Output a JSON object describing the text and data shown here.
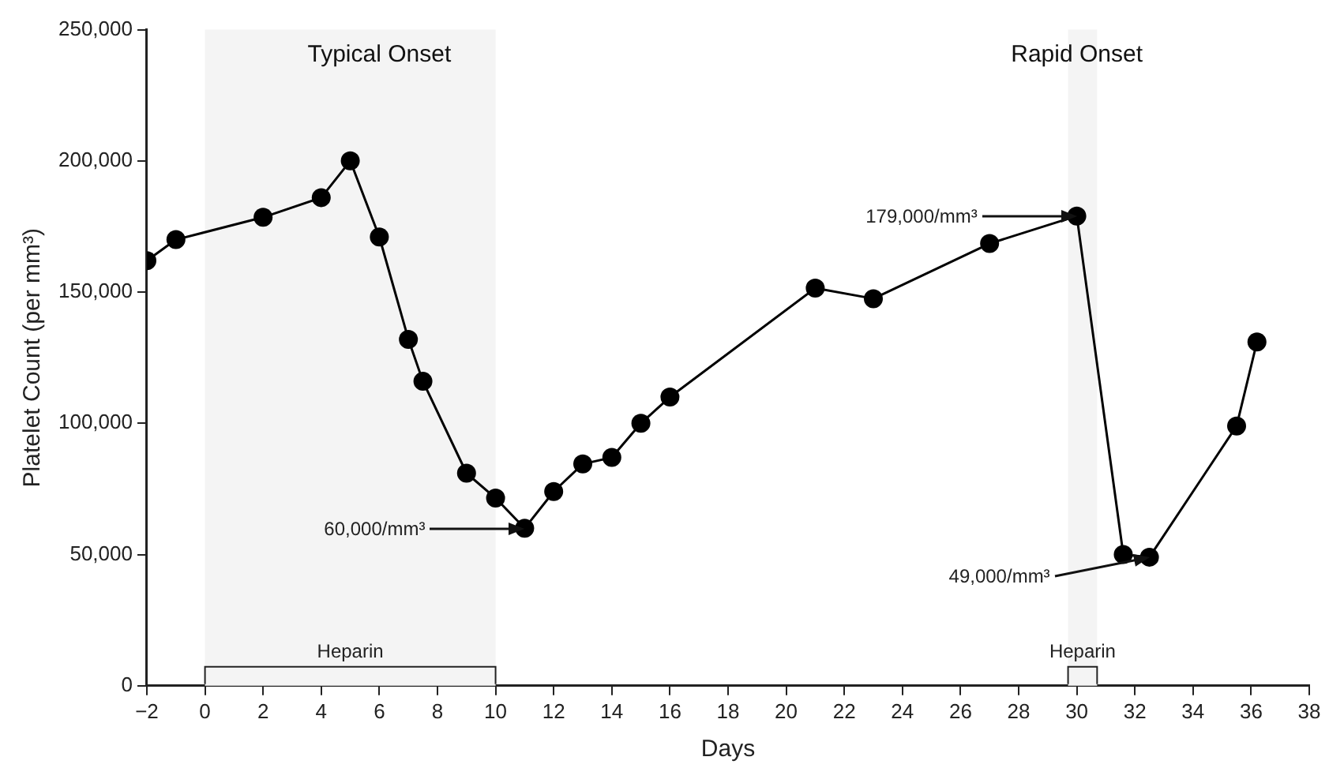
{
  "chart_data": {
    "type": "line",
    "xlabel": "Days",
    "ylabel": "Platelet Count (per mm³)",
    "x": [
      -2,
      -1,
      2,
      4,
      5,
      6,
      7,
      7.5,
      9,
      10,
      11,
      12,
      13,
      14,
      15,
      16,
      21,
      23,
      27,
      30,
      31.6,
      32.5,
      35.5,
      36.2
    ],
    "series": [
      {
        "color": "#000000",
        "values": [
          162000,
          170000,
          178500,
          186000,
          200000,
          171000,
          132000,
          116000,
          81000,
          71500,
          60000,
          74000,
          84500,
          87000,
          100000,
          110000,
          151500,
          147500,
          168500,
          179000,
          50000,
          49000,
          99000,
          131000
        ]
      }
    ],
    "xlim": [
      -2,
      38
    ],
    "xticks": [
      -2,
      0,
      2,
      4,
      6,
      8,
      10,
      12,
      14,
      16,
      18,
      20,
      22,
      24,
      26,
      28,
      30,
      32,
      34,
      36,
      38
    ],
    "ylim": [
      0,
      250000
    ],
    "yticks": [
      0,
      {
        "value": 50000,
        "label": "50,000"
      },
      {
        "value": 100000,
        "label": "100,000"
      },
      {
        "value": 150000,
        "label": "150,000"
      },
      {
        "value": 200000,
        "label": "200,000"
      },
      {
        "value": 250000,
        "label": "250,000"
      }
    ],
    "grid": false,
    "legend": false,
    "marker": "circle",
    "line_style": "solid",
    "bands": [
      {
        "axis": "x",
        "from": 0,
        "to": 10,
        "label": "Heparin",
        "color": "#f4f4f4"
      },
      {
        "axis": "x",
        "from": 29.7,
        "to": 30.7,
        "label": "Heparin",
        "color": "#f4f4f4"
      }
    ],
    "annotations": [
      "Typical Onset",
      "Rapid Onset",
      {
        "text": "60,000/mm³",
        "x": 11,
        "y": 60000
      },
      {
        "text": "179,000/mm³",
        "x": 30,
        "y": 179000
      },
      {
        "text": "49,000/mm³",
        "x": 32.5,
        "y": 49000
      }
    ]
  }
}
